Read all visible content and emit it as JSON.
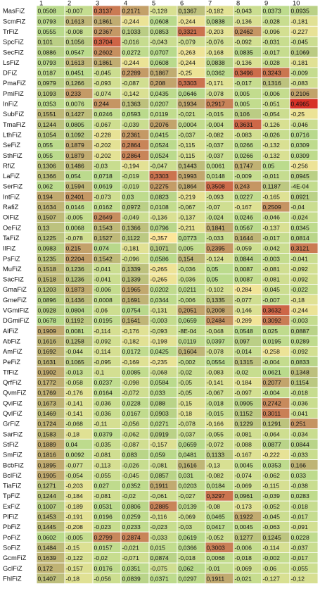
{
  "chart_data": {
    "type": "heatmap",
    "columns": [
      "1",
      "2",
      "3",
      "4",
      "5",
      "6",
      "7",
      "8",
      "9",
      "10"
    ],
    "rows": [
      {
        "label": "MasFiZ",
        "values": [
          "0,0508",
          "-0,007",
          "0,3137",
          "0,2171",
          "-0,128",
          "0,1367",
          "-0,182",
          "-0,043",
          "0,0373",
          "0,0935"
        ]
      },
      {
        "label": "ScmFiZ",
        "values": [
          "0,0793",
          "0,1613",
          "0,1861",
          "-0,244",
          "0,0608",
          "-0,244",
          "0,0838",
          "-0,136",
          "-0,028",
          "-0,181"
        ]
      },
      {
        "label": "TrFiZ",
        "values": [
          "0,0555",
          "-0,008",
          "0,2367",
          "0,1033",
          "0,0853",
          "0,3321",
          "-0,203",
          "0,2462",
          "-0,096",
          "-0,227"
        ]
      },
      {
        "label": "SpcFiZ",
        "values": [
          "0,101",
          "0,1056",
          "0,3704",
          "-0,016",
          "-0,043",
          "-0,079",
          "-0,076",
          "-0,092",
          "-0,031",
          "-0,045"
        ]
      },
      {
        "label": "SecFiZ",
        "values": [
          "0,0886",
          "0,0547",
          "0,2602",
          "0,0272",
          "0,0707",
          "-0,263",
          "-0,168",
          "0,0835",
          "-0,017",
          "0,1069"
        ]
      },
      {
        "label": "LsFiZ",
        "values": [
          "0,0793",
          "0,1613",
          "0,1861",
          "-0,244",
          "0,0608",
          "-0,244",
          "0,0838",
          "-0,136",
          "-0,028",
          "-0,181"
        ]
      },
      {
        "label": "DFiZ",
        "values": [
          "0,0187",
          "0,0451",
          "-0,045",
          "0,2289",
          "0,1867",
          "-0,25",
          "0,0362",
          "0,3496",
          "0,3243",
          "-0,009"
        ]
      },
      {
        "label": "PmaFiZ",
        "values": [
          "0,0979",
          "0,1266",
          "-0,093",
          "-0,087",
          "0,208",
          "0,3303",
          "-0,171",
          "-0,017",
          "0,1316",
          "-0,083"
        ]
      },
      {
        "label": "PmiFiZ",
        "values": [
          "0,1093",
          "0,233",
          "-0,074",
          "-0,142",
          "0,0435",
          "0,0646",
          "-0,078",
          "0,005",
          "-0,006",
          "0,2106"
        ]
      },
      {
        "label": "InFiZ",
        "values": [
          "0,0353",
          "0,0076",
          "0,244",
          "0,1363",
          "0,0207",
          "0,1934",
          "0,2917",
          "0,005",
          "-0,051",
          "0,4965"
        ]
      },
      {
        "label": "SubFiZ",
        "values": [
          "0,1551",
          "0,1427",
          "0,0246",
          "0,0593",
          "0,0119",
          "-0,021",
          "-0,015",
          "0,106",
          "-0,054",
          "-0,25"
        ]
      },
      {
        "label": "TmaFiZ",
        "values": [
          "0,1244",
          "0,0805",
          "-0,067",
          "-0,039",
          "0,2076",
          "0,0004",
          "-0,004",
          "0,3631",
          "-0,126",
          "-0,046"
        ]
      },
      {
        "label": "LthFiZ",
        "values": [
          "0,1054",
          "0,1092",
          "-0,228",
          "0,2361",
          "0,0415",
          "-0,037",
          "-0,082",
          "-0,083",
          "-0,026",
          "0,0716"
        ]
      },
      {
        "label": "SeFiZ",
        "values": [
          "0,055",
          "0,1879",
          "-0,202",
          "0,2864",
          "0,0524",
          "-0,115",
          "-0,037",
          "0,0266",
          "-0,132",
          "0,0309"
        ]
      },
      {
        "label": "SthFiZ",
        "values": [
          "0,055",
          "0,1879",
          "-0,202",
          "0,2864",
          "0,0524",
          "-0,115",
          "-0,037",
          "0,0266",
          "-0,132",
          "0,0309"
        ]
      },
      {
        "label": "RfiZ",
        "values": [
          "0,1306",
          "0,1486",
          "-0,03",
          "-0,194",
          "-0,047",
          "0,1443",
          "0,0061",
          "0,1747",
          "0,05",
          "-0,256"
        ]
      },
      {
        "label": "LaFiZ",
        "values": [
          "0,1366",
          "0,054",
          "0,0718",
          "-0,019",
          "0,3303",
          "0,1993",
          "0,0148",
          "-0,009",
          "-0,011",
          "0,0945"
        ]
      },
      {
        "label": "SerFiZ",
        "values": [
          "0,062",
          "0,1594",
          "0,0619",
          "-0,019",
          "0,2275",
          "0,1864",
          "0,3508",
          "0,243",
          "0,1187",
          "-4E-04"
        ]
      },
      {
        "label": "IntFiZ",
        "values": [
          "0,194",
          "0,2401",
          "-0,073",
          "0,03",
          "0,0823",
          "-0,219",
          "-0,093",
          "0,0227",
          "-0,165",
          "0,0921"
        ]
      },
      {
        "label": "RafiZ",
        "values": [
          "0,1634",
          "0,0146",
          "0,0162",
          "0,0972",
          "0,0108",
          "-0,067",
          "-0,07",
          "-0,167",
          "0,2509",
          "-0,04"
        ]
      },
      {
        "label": "OiFiZ",
        "values": [
          "0,1507",
          "-0,005",
          "0,2649",
          "-0,049",
          "-0,136",
          "-0,137",
          "-0,024",
          "0,0246",
          "-0,046",
          "-0,024"
        ]
      },
      {
        "label": "OeFiZ",
        "values": [
          "0,13",
          "0,0068",
          "0,1543",
          "0,1366",
          "0,0796",
          "-0,211",
          "0,1841",
          "0,0567",
          "-0,137",
          "0,0345"
        ]
      },
      {
        "label": "TaFiZ",
        "values": [
          "0,1225",
          "-0,078",
          "0,1527",
          "0,1122",
          "-0,357",
          "0,0773",
          "-0,033",
          "0,1644",
          "-0,017",
          "0,0814"
        ]
      },
      {
        "label": "IlFiZ",
        "values": [
          "0,0983",
          "0,215",
          "0,074",
          "-0,181",
          "0,1071",
          "0,005",
          "0,2395",
          "-0,059",
          "-0,042",
          "0,3121"
        ]
      },
      {
        "label": "PsFiZ",
        "values": [
          "0,1235",
          "0,2204",
          "0,1542",
          "-0,096",
          "0,0586",
          "0,154",
          "-0,124",
          "0,0844",
          "-0,003",
          "-0,041"
        ]
      },
      {
        "label": "MuFiZ",
        "values": [
          "0,1518",
          "0,1236",
          "-0,041",
          "0,1339",
          "-0,265",
          "-0,036",
          "0,05",
          "0,0087",
          "-0,081",
          "-0,092"
        ]
      },
      {
        "label": "SacFiZ",
        "values": [
          "0,1518",
          "0,1236",
          "-0,041",
          "0,1339",
          "-0,265",
          "-0,036",
          "0,05",
          "0,0087",
          "-0,081",
          "-0,092"
        ]
      },
      {
        "label": "GmaFiZ",
        "values": [
          "0,1203",
          "0,1873",
          "-0,006",
          "0,1965",
          "0,0202",
          "0,0211",
          "-0,102",
          "-0,284",
          "-0,045",
          "-0,022"
        ]
      },
      {
        "label": "GmeFiZ",
        "values": [
          "0,0896",
          "0,1436",
          "0,0008",
          "0,1691",
          "0,0344",
          "-0,006",
          "0,1335",
          "-0,077",
          "-0,007",
          "-0,18"
        ]
      },
      {
        "label": "VGmiFiZ",
        "values": [
          "0,0928",
          "0,0804",
          "-0,06",
          "0,0754",
          "-0,131",
          "0,2051",
          "0,2008",
          "-0,146",
          "0,3632",
          "-0,244"
        ]
      },
      {
        "label": "DGmiFiZ",
        "values": [
          "0,0678",
          "0,1192",
          "0,0195",
          "0,1641",
          "-0,003",
          "0,0659",
          "0,2484",
          "-0,289",
          "0,3092",
          "-0,003"
        ]
      },
      {
        "label": "AlFiZ",
        "values": [
          "0,1909",
          "0,0081",
          "-0,114",
          "-0,176",
          "-0,093",
          "-8E-04",
          "-0,048",
          "0,0548",
          "0,025",
          "0,0887"
        ]
      },
      {
        "label": "AbFiZ",
        "values": [
          "0,1616",
          "0,1258",
          "-0,092",
          "-0,182",
          "-0,198",
          "0,0119",
          "0,0397",
          "0,097",
          "0,0195",
          "0,0289"
        ]
      },
      {
        "label": "AmFiZ",
        "values": [
          "0,1692",
          "-0,044",
          "-0,114",
          "0,0172",
          "0,0425",
          "0,1604",
          "-0,078",
          "-0,014",
          "-0,258",
          "-0,092"
        ]
      },
      {
        "label": "PeFiZ",
        "values": [
          "0,1631",
          "0,1065",
          "-0,095",
          "-0,169",
          "-0,235",
          "-0,002",
          "0,0554",
          "0,1315",
          "-0,004",
          "0,0833"
        ]
      },
      {
        "label": "TfFiZ",
        "values": [
          "0,1902",
          "-0,013",
          "-0,1",
          "0,0085",
          "-0,068",
          "-0,02",
          "-0,083",
          "-0,02",
          "0,0621",
          "0,1348"
        ]
      },
      {
        "label": "QrfFiZ",
        "values": [
          "0,1772",
          "-0,058",
          "0,0237",
          "-0,098",
          "0,0584",
          "-0,05",
          "-0,141",
          "-0,184",
          "0,2077",
          "0,1154"
        ]
      },
      {
        "label": "QvmFiZ",
        "values": [
          "0,1769",
          "-0,176",
          "0,0164",
          "-0,072",
          "0,033",
          "-0,05",
          "-0,067",
          "-0,097",
          "-0,004",
          "-0,018"
        ]
      },
      {
        "label": "QviFiZ",
        "values": [
          "0,1673",
          "-0,141",
          "-0,036",
          "0,0228",
          "0,088",
          "-0,15",
          "-0,018",
          "0,0905",
          "0,2742",
          "-0,036"
        ]
      },
      {
        "label": "QvlFiZ",
        "values": [
          "0,1469",
          "-0,141",
          "-0,036",
          "0,0167",
          "0,0903",
          "-0,18",
          "-0,015",
          "0,1152",
          "0,3011",
          "-0,041"
        ]
      },
      {
        "label": "GrFiZ",
        "values": [
          "0,1724",
          "-0,068",
          "-0,11",
          "-0,056",
          "0,0271",
          "-0,078",
          "-0,166",
          "0,1229",
          "0,1291",
          "0,251"
        ]
      },
      {
        "label": "SarFiZ",
        "values": [
          "0,1583",
          "-0,18",
          "0,0379",
          "-0,062",
          "0,0919",
          "-0,037",
          "-0,055",
          "-0,081",
          "-0,064",
          "-0,034"
        ]
      },
      {
        "label": "StFiZ",
        "values": [
          "0,1889",
          "0,04",
          "-0,035",
          "-0,087",
          "-0,157",
          "0,0659",
          "-0,072",
          "-0,088",
          "0,0877",
          "0,0844"
        ]
      },
      {
        "label": "SmFiZ",
        "values": [
          "0,1816",
          "0,0092",
          "-0,081",
          "0,083",
          "0,059",
          "0,0481",
          "0,1133",
          "-0,167",
          "-0,222",
          "-0,033"
        ]
      },
      {
        "label": "BcbFiZ",
        "values": [
          "0,1895",
          "-0,077",
          "-0,113",
          "-0,026",
          "-0,081",
          "0,1616",
          "-0,13",
          "0,0045",
          "0,0353",
          "0,166"
        ]
      },
      {
        "label": "BclFiZ",
        "values": [
          "0,1905",
          "-0,054",
          "-0,055",
          "-0,045",
          "0,0857",
          "0,031",
          "-0,082",
          "-0,074",
          "-0,062",
          "0,033"
        ]
      },
      {
        "label": "TiaFiZ",
        "values": [
          "0,1271",
          "-0,203",
          "0,027",
          "0,0352",
          "0,1911",
          "0,0203",
          "0,0184",
          "-0,069",
          "-0,115",
          "-0,038"
        ]
      },
      {
        "label": "TpFiZ",
        "values": [
          "0,1244",
          "-0,184",
          "-0,081",
          "-0,02",
          "-0,061",
          "-0,027",
          "0,3297",
          "0,0961",
          "-0,039",
          "0,0283"
        ]
      },
      {
        "label": "ExFiZ",
        "values": [
          "0,1007",
          "-0,189",
          "0,0531",
          "0,0806",
          "0,2885",
          "0,0139",
          "-0,08",
          "-0,173",
          "-0,052",
          "-0,018"
        ]
      },
      {
        "label": "PlFiZ",
        "values": [
          "0,1453",
          "-0,191",
          "0,0196",
          "0,0259",
          "-0,116",
          "-0,069",
          "0,0465",
          "0,1922",
          "-0,045",
          "-0,017"
        ]
      },
      {
        "label": "PbFiZ",
        "values": [
          "0,1445",
          "-0,208",
          "-0,023",
          "0,0233",
          "-0,023",
          "-0,03",
          "0,0417",
          "0,0045",
          "-0,063",
          "-0,091"
        ]
      },
      {
        "label": "PoFiZ",
        "values": [
          "0,0602",
          "-0,005",
          "0,2799",
          "0,2874",
          "-0,033",
          "0,0619",
          "-0,052",
          "0,1277",
          "0,1245",
          "0,0228"
        ]
      },
      {
        "label": "SoFiZ",
        "values": [
          "0,1484",
          "-0,15",
          "0,0157",
          "-0,021",
          "0,015",
          "0,0366",
          "0,3003",
          "-0,006",
          "-0,114",
          "-0,037"
        ]
      },
      {
        "label": "GcmFiZ",
        "values": [
          "0,1639",
          "-0,122",
          "-0,02",
          "-0,071",
          "0,0874",
          "-0,018",
          "0,0068",
          "-0,018",
          "-0,002",
          "-0,017"
        ]
      },
      {
        "label": "GclFiZ",
        "values": [
          "0,172",
          "-0,157",
          "0,0176",
          "0,0351",
          "-0,075",
          "0,062",
          "-0,01",
          "-0,069",
          "-0,06",
          "-0,055"
        ]
      },
      {
        "label": "FhlFiZ",
        "values": [
          "0,1407",
          "-0,18",
          "-0,056",
          "0,0839",
          "0,0371",
          "0,0297",
          "0,1911",
          "-0,021",
          "-0,127",
          "-0,12"
        ]
      }
    ],
    "color_scale": {
      "low": "#fde69a",
      "mid": "#b8da8c",
      "high": "#d73228"
    },
    "grid": true,
    "legend": "none",
    "title": "",
    "xlabel": "",
    "ylabel": ""
  }
}
